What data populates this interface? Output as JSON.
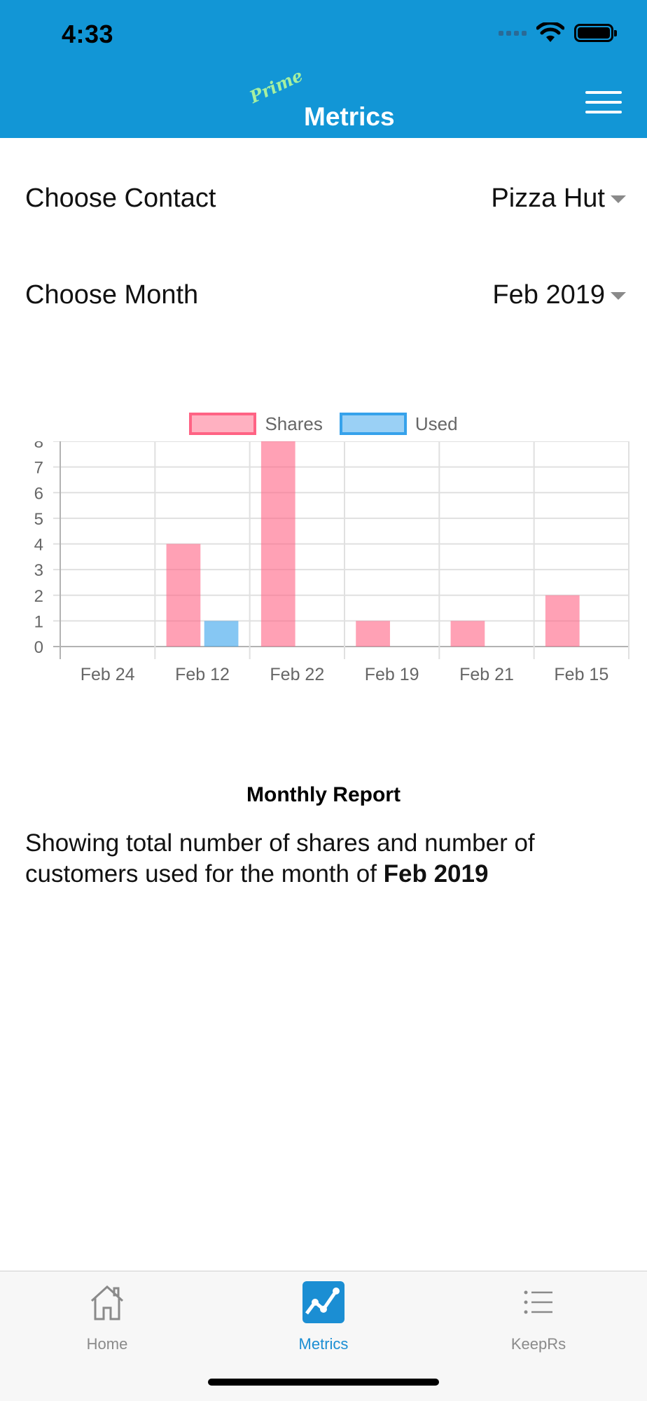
{
  "status": {
    "time": "4:33"
  },
  "header": {
    "brand_script": "Prime",
    "title": "Metrics"
  },
  "form": {
    "contact": {
      "label": "Choose Contact",
      "value": "Pizza Hut"
    },
    "month": {
      "label": "Choose Month",
      "value": "Feb 2019"
    }
  },
  "chart_data": {
    "type": "bar",
    "categories": [
      "Feb 24",
      "Feb 12",
      "Feb 22",
      "Feb 19",
      "Feb 21",
      "Feb 15"
    ],
    "series": [
      {
        "name": "Shares",
        "values": [
          0,
          4,
          8,
          1,
          1,
          2
        ],
        "color": "#ff6384"
      },
      {
        "name": "Used",
        "values": [
          0,
          1,
          0,
          0,
          0,
          0
        ],
        "color": "#36a2eb"
      }
    ],
    "yticks": [
      "0",
      "1",
      "2",
      "3",
      "4",
      "5",
      "6",
      "7",
      "8"
    ],
    "ylim": [
      0,
      8
    ],
    "grid": true,
    "legend": "top-center"
  },
  "report": {
    "title": "Monthly Report",
    "text": "Showing total number of shares and number of customers used for the month of ",
    "month": "Feb 2019"
  },
  "tabs": [
    {
      "label": "Home",
      "icon": "home-icon",
      "active": false
    },
    {
      "label": "Metrics",
      "icon": "chart-icon",
      "active": true
    },
    {
      "label": "KeepRs",
      "icon": "list-icon",
      "active": false
    }
  ],
  "colors": {
    "header": "#1296d6",
    "active_tab": "#1b8ed3"
  }
}
